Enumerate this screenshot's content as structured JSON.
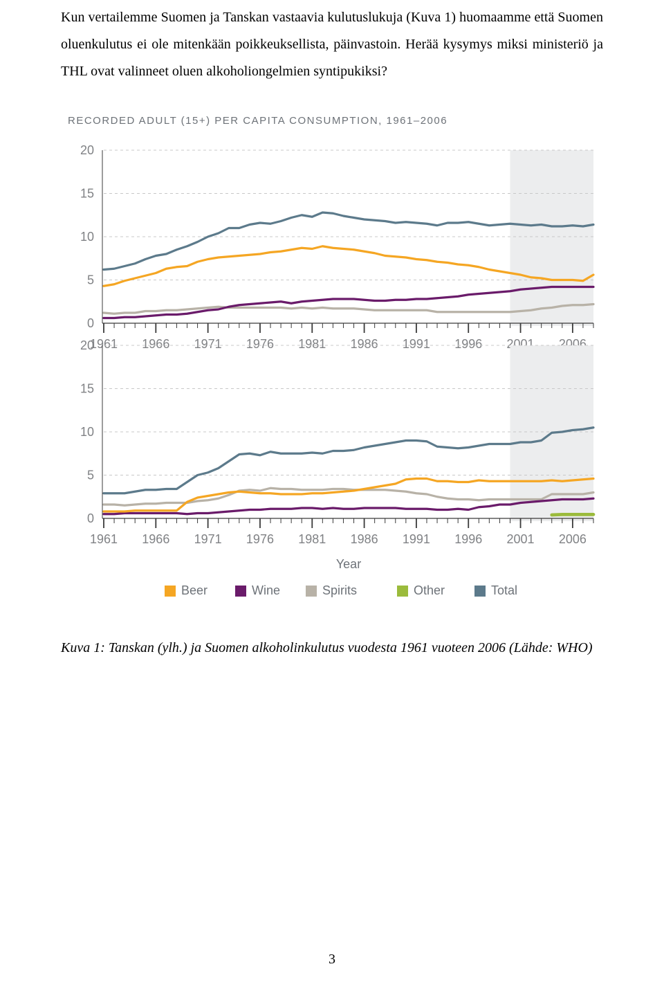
{
  "paragraph": "Kun vertailemme Suomen ja Tanskan vastaavia kulutuslukuja (Kuva 1) huomaamme että Suomen oluenkulutus ei ole mitenkään poikkeuksellista, päinvastoin. Herää kysymys miksi ministeriö ja THL ovat valinneet oluen alkoholiongelmien syntipukiksi?",
  "chart_title": "RECORDED ADULT (15+) PER CAPITA CONSUMPTION, 1961–2006",
  "caption": "Kuva 1: Tanskan (ylh.) ja Suomen alkoholinkulutus vuodesta 1961 vuoteen 2006 (Lähde: WHO)",
  "page_number": "3",
  "y_ticks": [
    0,
    5,
    10,
    15,
    20
  ],
  "x_ticks": [
    1961,
    1966,
    1971,
    1976,
    1981,
    1986,
    1991,
    1996,
    2001,
    2006
  ],
  "x_axis_label": "Year",
  "legend": [
    {
      "label": "Beer",
      "color": "#f5a623"
    },
    {
      "label": "Wine",
      "color": "#6a1b6a"
    },
    {
      "label": "Spirits",
      "color": "#b8b2a7"
    },
    {
      "label": "Other",
      "color": "#9bbb3c"
    },
    {
      "label": "Total",
      "color": "#5c7a8b"
    }
  ],
  "colors": {
    "grid": "#c8c8c8",
    "tick": "#3a3a3a",
    "highlight_band": "#ecedee",
    "beer": "#f5a623",
    "wine": "#6a1b6a",
    "spirits": "#b8b2a7",
    "other": "#9bbb3c",
    "total": "#5c7a8b"
  },
  "chart_top": {
    "type": "line",
    "ylim": [
      0,
      20
    ],
    "xlim": [
      1961,
      2008
    ],
    "line_width": 3.2,
    "series": {
      "total": [
        6.2,
        6.3,
        6.6,
        6.9,
        7.4,
        7.8,
        8.0,
        8.5,
        8.9,
        9.4,
        10.0,
        10.4,
        11.0,
        11.0,
        11.4,
        11.6,
        11.5,
        11.8,
        12.2,
        12.5,
        12.3,
        12.8,
        12.7,
        12.4,
        12.2,
        12.0,
        11.9,
        11.8,
        11.6,
        11.7,
        11.6,
        11.5,
        11.3,
        11.6,
        11.6,
        11.7,
        11.5,
        11.3,
        11.4,
        11.5,
        11.4,
        11.3,
        11.4,
        11.2,
        11.2,
        11.3,
        11.2,
        11.4
      ],
      "beer": [
        4.3,
        4.5,
        4.9,
        5.2,
        5.5,
        5.8,
        6.3,
        6.5,
        6.6,
        7.1,
        7.4,
        7.6,
        7.7,
        7.8,
        7.9,
        8.0,
        8.2,
        8.3,
        8.5,
        8.7,
        8.6,
        8.9,
        8.7,
        8.6,
        8.5,
        8.3,
        8.1,
        7.8,
        7.7,
        7.6,
        7.4,
        7.3,
        7.1,
        7.0,
        6.8,
        6.7,
        6.5,
        6.2,
        6.0,
        5.8,
        5.6,
        5.3,
        5.2,
        5.0,
        5.0,
        5.0,
        4.9,
        5.6
      ],
      "wine": [
        0.6,
        0.6,
        0.7,
        0.7,
        0.8,
        0.9,
        1.0,
        1.0,
        1.1,
        1.3,
        1.5,
        1.6,
        1.9,
        2.1,
        2.2,
        2.3,
        2.4,
        2.5,
        2.3,
        2.5,
        2.6,
        2.7,
        2.8,
        2.8,
        2.8,
        2.7,
        2.6,
        2.6,
        2.7,
        2.7,
        2.8,
        2.8,
        2.9,
        3.0,
        3.1,
        3.3,
        3.4,
        3.5,
        3.6,
        3.7,
        3.9,
        4.0,
        4.1,
        4.2,
        4.2,
        4.2,
        4.2,
        4.2
      ],
      "spirits": [
        1.2,
        1.1,
        1.2,
        1.2,
        1.4,
        1.4,
        1.5,
        1.5,
        1.6,
        1.7,
        1.8,
        1.9,
        1.8,
        1.8,
        1.8,
        1.8,
        1.8,
        1.8,
        1.7,
        1.8,
        1.7,
        1.8,
        1.7,
        1.7,
        1.7,
        1.6,
        1.5,
        1.5,
        1.5,
        1.5,
        1.5,
        1.5,
        1.3,
        1.3,
        1.3,
        1.3,
        1.3,
        1.3,
        1.3,
        1.3,
        1.4,
        1.5,
        1.7,
        1.8,
        2.0,
        2.1,
        2.1,
        2.2
      ]
    }
  },
  "chart_bottom": {
    "type": "line",
    "ylim": [
      0,
      20
    ],
    "xlim": [
      1961,
      2008
    ],
    "line_width": 3.2,
    "series": {
      "total": [
        2.9,
        2.9,
        2.9,
        3.1,
        3.3,
        3.3,
        3.4,
        3.4,
        4.2,
        5.0,
        5.3,
        5.8,
        6.6,
        7.4,
        7.5,
        7.3,
        7.7,
        7.5,
        7.5,
        7.5,
        7.6,
        7.5,
        7.8,
        7.8,
        7.9,
        8.2,
        8.4,
        8.6,
        8.8,
        9.0,
        9.0,
        8.9,
        8.3,
        8.2,
        8.1,
        8.2,
        8.4,
        8.6,
        8.6,
        8.6,
        8.8,
        8.8,
        9.0,
        9.9,
        10.0,
        10.2,
        10.3,
        10.5
      ],
      "beer": [
        0.8,
        0.8,
        0.8,
        0.9,
        0.9,
        0.9,
        0.9,
        0.9,
        1.9,
        2.4,
        2.6,
        2.8,
        3.0,
        3.1,
        3.0,
        2.9,
        2.9,
        2.8,
        2.8,
        2.8,
        2.9,
        2.9,
        3.0,
        3.1,
        3.2,
        3.4,
        3.6,
        3.8,
        4.0,
        4.5,
        4.6,
        4.6,
        4.3,
        4.3,
        4.2,
        4.2,
        4.4,
        4.3,
        4.3,
        4.3,
        4.3,
        4.3,
        4.3,
        4.4,
        4.3,
        4.4,
        4.5,
        4.6
      ],
      "spirits": [
        1.6,
        1.6,
        1.5,
        1.6,
        1.7,
        1.7,
        1.8,
        1.8,
        1.8,
        2.0,
        2.1,
        2.3,
        2.7,
        3.2,
        3.3,
        3.2,
        3.5,
        3.4,
        3.4,
        3.3,
        3.3,
        3.3,
        3.4,
        3.4,
        3.3,
        3.3,
        3.3,
        3.3,
        3.2,
        3.1,
        2.9,
        2.8,
        2.5,
        2.3,
        2.2,
        2.2,
        2.1,
        2.2,
        2.2,
        2.2,
        2.2,
        2.2,
        2.2,
        2.8,
        2.8,
        2.8,
        2.8,
        3.0
      ],
      "wine": [
        0.5,
        0.5,
        0.6,
        0.6,
        0.6,
        0.6,
        0.6,
        0.6,
        0.5,
        0.6,
        0.6,
        0.7,
        0.8,
        0.9,
        1.0,
        1.0,
        1.1,
        1.1,
        1.1,
        1.2,
        1.2,
        1.1,
        1.2,
        1.1,
        1.1,
        1.2,
        1.2,
        1.2,
        1.2,
        1.1,
        1.1,
        1.1,
        1.0,
        1.0,
        1.1,
        1.0,
        1.3,
        1.4,
        1.6,
        1.6,
        1.8,
        1.9,
        2.0,
        2.1,
        2.2,
        2.2,
        2.2,
        2.3
      ],
      "other": {
        "2004": 0.4,
        "2005": 0.45,
        "2006": 0.45,
        "2007": 0.45,
        "2008": 0.45
      }
    }
  }
}
